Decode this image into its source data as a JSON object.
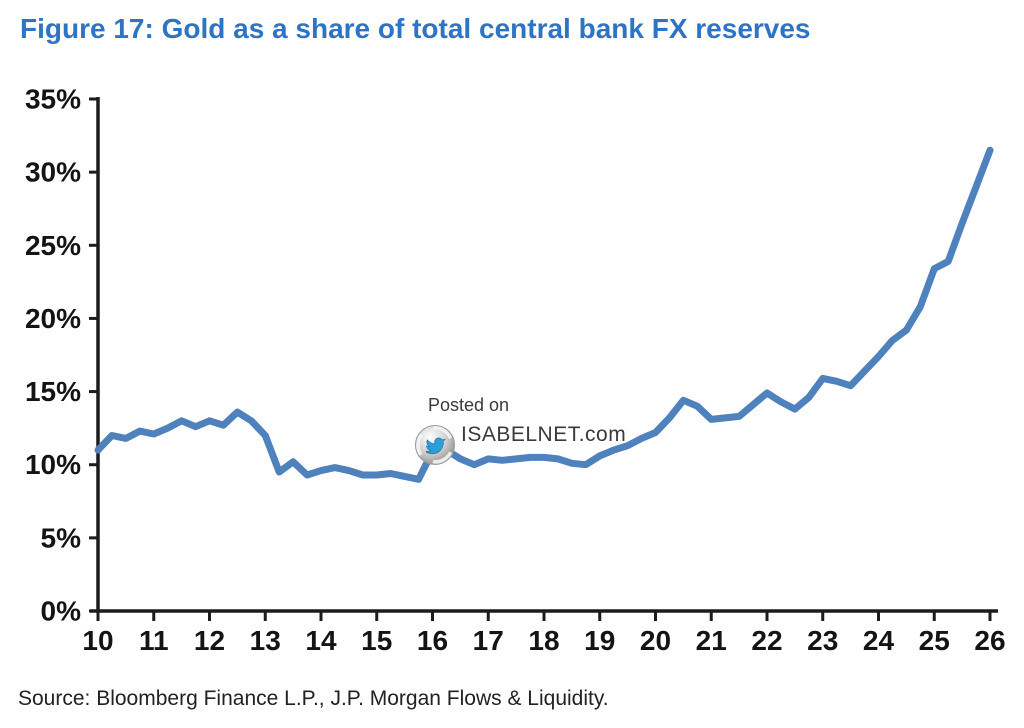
{
  "figure": {
    "title": "Figure 17: Gold as a share of total central bank FX reserves",
    "source": "Source: Bloomberg Finance L.P., J.P. Morgan Flows & Liquidity."
  },
  "watermark": {
    "posted_on": "Posted on",
    "site": "ISABELNET.com",
    "logo_icon": "isabelnet-sphere-bird-logo"
  },
  "colors": {
    "title": "#2E74C4",
    "line": "#4F81BD",
    "axis": "#1C1C1C",
    "tick_label": "#141414",
    "source_text": "#222222",
    "watermark_text": "#3A3A3A"
  },
  "chart_data": {
    "type": "line",
    "title": "Gold as a share of total central bank FX reserves",
    "xlabel": "",
    "ylabel": "",
    "x_unit": "year (2010-2026 shown as 10-26)",
    "y_unit": "percent",
    "xlim": [
      10,
      26
    ],
    "ylim": [
      0,
      35
    ],
    "x_ticks": [
      10,
      11,
      12,
      13,
      14,
      15,
      16,
      17,
      18,
      19,
      20,
      21,
      22,
      23,
      24,
      25,
      26
    ],
    "y_ticks": [
      0,
      5,
      10,
      15,
      20,
      25,
      30,
      35
    ],
    "y_tick_suffix": "%",
    "grid": false,
    "legend": null,
    "series": [
      {
        "name": "Gold share of total central bank FX reserves (%)",
        "x": [
          10,
          10.25,
          10.5,
          10.75,
          11,
          11.25,
          11.5,
          11.75,
          12,
          12.25,
          12.5,
          12.75,
          13,
          13.25,
          13.5,
          13.75,
          14,
          14.25,
          14.5,
          14.75,
          15,
          15.25,
          15.5,
          15.75,
          16,
          16.25,
          16.5,
          16.75,
          17,
          17.25,
          17.5,
          17.75,
          18,
          18.25,
          18.5,
          18.75,
          19,
          19.25,
          19.5,
          19.75,
          20,
          20.25,
          20.5,
          20.75,
          21,
          21.25,
          21.5,
          21.75,
          22,
          22.25,
          22.5,
          22.75,
          23,
          23.25,
          23.5,
          23.75,
          24,
          24.25,
          24.5,
          24.75,
          25,
          25.25,
          25.5,
          25.75,
          26
        ],
        "values": [
          11.0,
          12.0,
          11.8,
          12.3,
          12.1,
          12.5,
          13.0,
          12.6,
          13.0,
          12.7,
          13.6,
          13.0,
          12.0,
          9.5,
          10.2,
          9.3,
          9.6,
          9.8,
          9.6,
          9.3,
          9.3,
          9.4,
          9.2,
          9.0,
          10.9,
          11.0,
          10.4,
          10.0,
          10.4,
          10.3,
          10.4,
          10.5,
          10.5,
          10.4,
          10.1,
          10.0,
          10.6,
          11.0,
          11.3,
          11.8,
          12.2,
          13.2,
          14.4,
          14.0,
          13.1,
          13.2,
          13.3,
          14.1,
          14.9,
          14.3,
          13.8,
          14.6,
          15.9,
          15.7,
          15.4,
          16.4,
          17.4,
          18.5,
          19.2,
          20.8,
          23.4,
          23.9,
          26.5,
          29.0,
          31.5
        ]
      }
    ]
  }
}
